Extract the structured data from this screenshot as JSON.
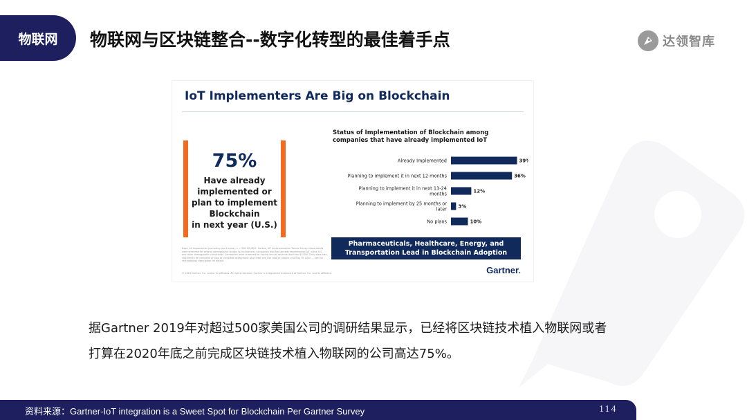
{
  "header": {
    "tag": "物联网",
    "title": "物联网与区块链整合--数字化转型的最佳着手点",
    "brand": "达领智库"
  },
  "figure": {
    "title": "IoT Implementers Are Big on Blockchain",
    "stat_value": "75%",
    "stat_text_lines": [
      "Have already",
      "implemented or",
      "plan to implement",
      "Blockchain",
      "in next year (U.S.)"
    ],
    "banner_lines": [
      "Pharmaceuticals, Healthcare, Energy, and",
      "Transportation Lead in Blockchain Adoption"
    ],
    "logo": "Gartner",
    "fine_print": "Base: All respondents (excluding don't know); n = 558 SOURCE: Gartner IoT Implementation Trends Survey respondents were screened for several demographic factors to include only companies that had already implemented IoT in the U.S. and other demographic constraints. Companies were screened for having annual revenue less than $100M. They were also required to be complete or plan to complete deployment of at least one use case or project of IoT by YE 2020 — see full methodology description for details.",
    "copyright": "© 2019 Gartner, Inc. and/or its affiliates. All rights reserved. Gartner is a registered trademark of Gartner, Inc. and its affiliates."
  },
  "chart_data": {
    "type": "bar",
    "orientation": "horizontal",
    "title": "Status of Implementation of Blockchain among companies that have already implemented IoT",
    "categories": [
      [
        "Already Implemented"
      ],
      [
        "Planning to implement it in next 12 months"
      ],
      [
        "Planning to implement it in next 13-24",
        "months"
      ],
      [
        "Planning to implement by 25 months or",
        "later"
      ],
      [
        "No plans"
      ]
    ],
    "values": [
      39,
      36,
      12,
      3,
      10
    ],
    "value_labels": [
      "39%",
      "36%",
      "12%",
      "3%",
      "10%"
    ],
    "unit": "%",
    "bar_color": "#102a5c",
    "xlim": [
      0,
      40
    ],
    "grid": false
  },
  "caption": {
    "line1": "据Gartner 2019年对超过500家美国公司的调研结果显示，已经将区块链技术植入物联网或者",
    "line2": "打算在2020年底之前完成区块链技术植入物联网的公司高达75%。"
  },
  "footer": {
    "source": "资料来源：Gartner-IoT integration is a Sweet Spot for Blockchain Per Gartner Survey",
    "page": "114"
  },
  "colors": {
    "navy": "#1e1f5e",
    "chart_navy": "#102a5c",
    "accent_orange": "#f26b21"
  }
}
